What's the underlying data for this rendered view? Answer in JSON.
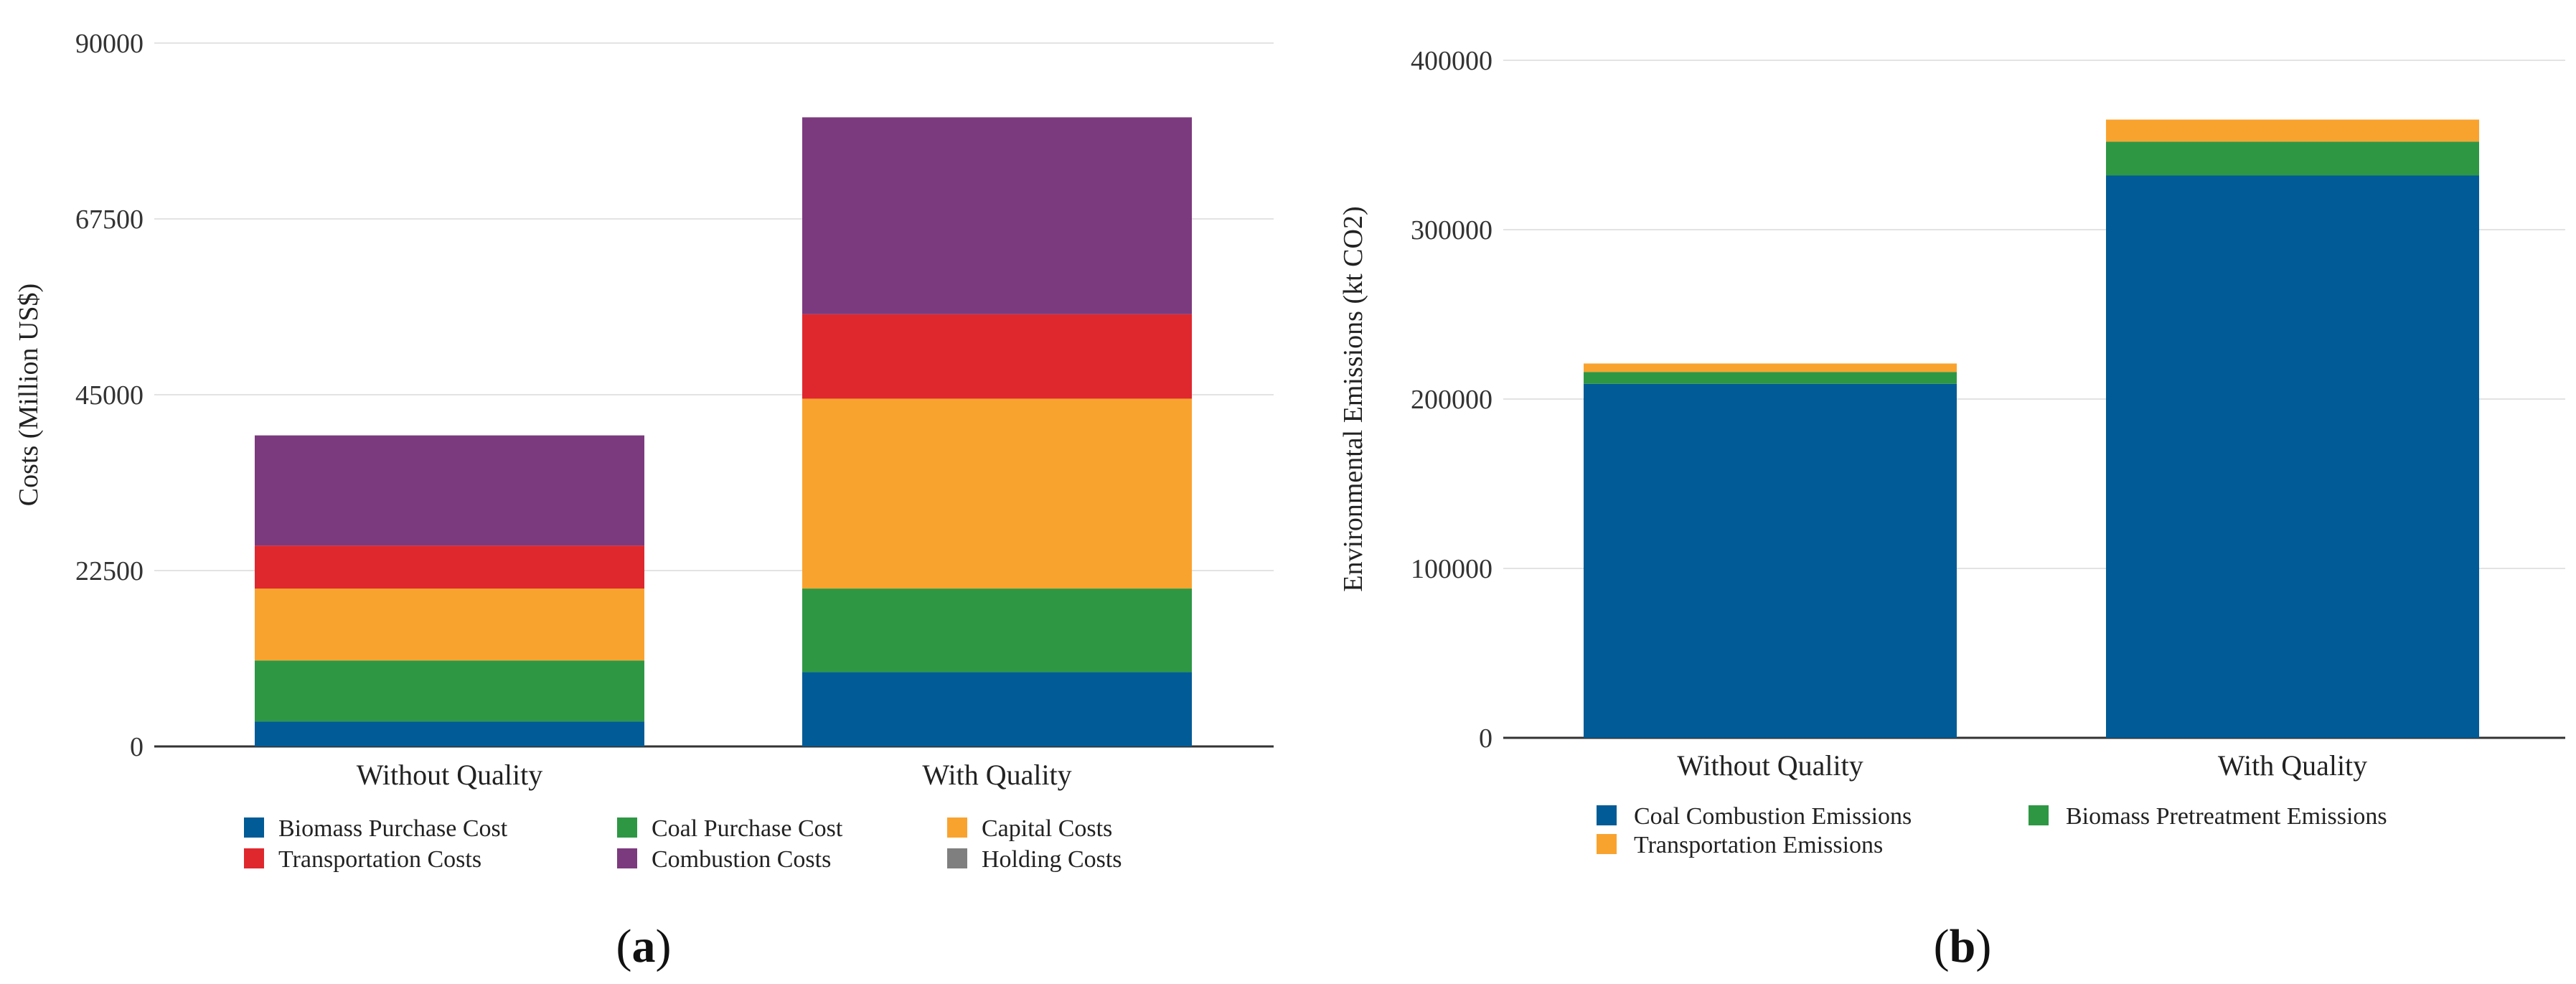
{
  "chart_data": [
    {
      "type": "bar",
      "stacked": true,
      "panel_label": "a",
      "title": "",
      "xlabel": "",
      "ylabel": "Costs (Million US$)",
      "ylim": [
        0,
        90000
      ],
      "yticks": [
        0,
        22500,
        45000,
        67500,
        90000
      ],
      "categories": [
        "Without Quality",
        "With Quality"
      ],
      "legend_position": "bottom",
      "series": [
        {
          "name": "Biomass Purchase Cost",
          "color": "#005b96",
          "values": [
            3200,
            9500
          ]
        },
        {
          "name": "Coal Purchase Cost",
          "color": "#2e9744",
          "values": [
            7800,
            10700
          ]
        },
        {
          "name": "Capital Costs",
          "color": "#f9a32f",
          "values": [
            9200,
            24300
          ]
        },
        {
          "name": "Transportation Costs",
          "color": "#df282e",
          "values": [
            5500,
            10800
          ]
        },
        {
          "name": "Combustion Costs",
          "color": "#7c3a7e",
          "values": [
            14100,
            25200
          ]
        },
        {
          "name": "Holding Costs",
          "color": "#7f7f7f",
          "values": [
            0,
            0
          ]
        }
      ]
    },
    {
      "type": "bar",
      "stacked": true,
      "panel_label": "b",
      "title": "",
      "xlabel": "",
      "ylabel": "Environmental Emissions (kt CO2)",
      "ylim": [
        0,
        400000
      ],
      "yticks": [
        0,
        100000,
        200000,
        300000,
        400000
      ],
      "categories": [
        "Without Quality",
        "With Quality"
      ],
      "legend_position": "bottom",
      "series": [
        {
          "name": "Coal Combustion Emissions",
          "color": "#005b96",
          "values": [
            209000,
            332000
          ]
        },
        {
          "name": "Biomass Pretreatment Emissions",
          "color": "#2e9744",
          "values": [
            7000,
            20000
          ]
        },
        {
          "name": "Transportation Emissions",
          "color": "#f9a32f",
          "values": [
            5000,
            13000
          ]
        }
      ]
    }
  ]
}
